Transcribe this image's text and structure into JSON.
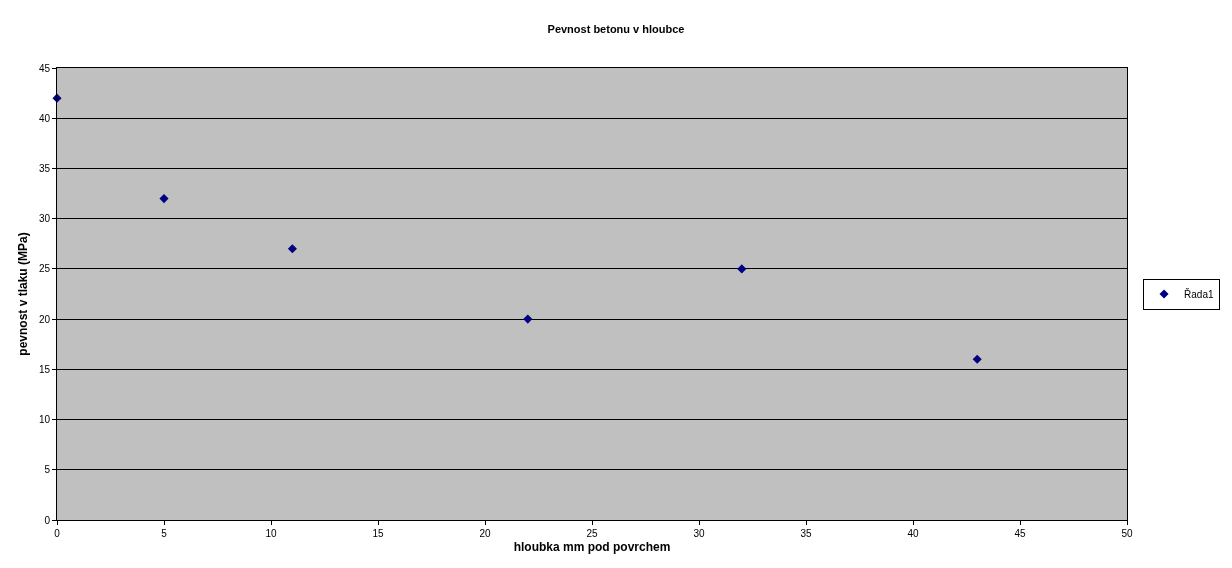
{
  "chart_data": {
    "type": "scatter",
    "title": "Pevnost betonu v hloubce",
    "xlabel": "hloubka mm pod povrchem",
    "ylabel": "pevnost v tlaku (MPa)",
    "x": [
      0,
      5,
      11,
      22,
      32,
      43
    ],
    "series": [
      {
        "name": "Řada1",
        "color": "#000080",
        "values": [
          42,
          32,
          27,
          20,
          25,
          16
        ]
      }
    ],
    "xlim": [
      0,
      50
    ],
    "xticks": [
      0,
      5,
      10,
      15,
      20,
      25,
      30,
      35,
      40,
      45,
      50
    ],
    "ylim": [
      0,
      45
    ],
    "yticks": [
      0,
      5,
      10,
      15,
      20,
      25,
      30,
      35,
      40,
      45
    ],
    "grid": "y",
    "legend": "right",
    "marker": "diamond"
  }
}
